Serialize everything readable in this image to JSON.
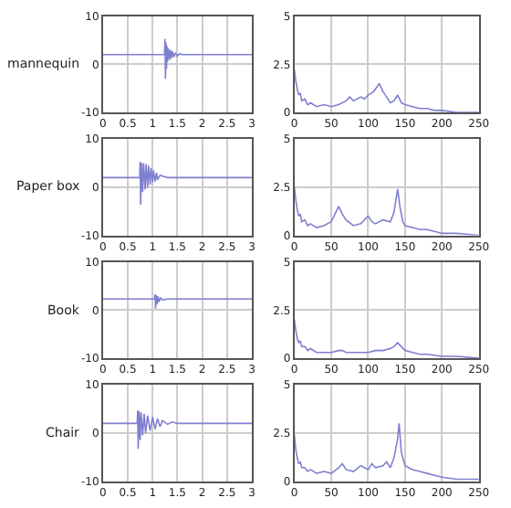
{
  "chart_data": [
    {
      "type": "line",
      "ylabel": "mannequin",
      "xlim": [
        0,
        3
      ],
      "xticks": [
        0,
        0.5,
        1,
        1.5,
        2,
        2.5,
        3
      ],
      "ylim": [
        -10,
        10
      ],
      "yticks": [
        -10,
        0,
        10
      ],
      "grid": true,
      "series": [
        {
          "color": "#7f7fd0",
          "x": [
            0,
            1.24,
            1.25,
            1.26,
            1.27,
            1.28,
            1.29,
            1.3,
            1.32,
            1.34,
            1.36,
            1.38,
            1.4,
            1.43,
            1.46,
            1.5,
            1.55,
            1.6,
            3
          ],
          "values": [
            2,
            2,
            5.3,
            -3,
            4.5,
            -1,
            3.8,
            0.5,
            3.3,
            0.9,
            3,
            1.2,
            2.7,
            1.5,
            2.4,
            1.7,
            2.2,
            2,
            2
          ]
        }
      ]
    },
    {
      "type": "line",
      "xlim": [
        0,
        250
      ],
      "xticks": [
        0,
        50,
        100,
        150,
        200,
        250
      ],
      "ylim": [
        0,
        5
      ],
      "yticks": [
        0,
        2.5,
        5
      ],
      "grid": true,
      "series": [
        {
          "color": "#7f7fd0",
          "x": [
            0,
            2,
            4,
            6,
            8,
            10,
            14,
            18,
            22,
            30,
            40,
            50,
            60,
            70,
            75,
            80,
            90,
            95,
            100,
            108,
            115,
            120,
            125,
            130,
            135,
            140,
            145,
            150,
            160,
            170,
            180,
            190,
            200,
            220,
            250
          ],
          "values": [
            2.2,
            1.6,
            1.2,
            0.9,
            1,
            0.6,
            0.7,
            0.4,
            0.5,
            0.3,
            0.4,
            0.3,
            0.4,
            0.6,
            0.8,
            0.6,
            0.8,
            0.7,
            0.9,
            1.1,
            1.5,
            1.1,
            0.8,
            0.5,
            0.6,
            0.9,
            0.5,
            0.4,
            0.3,
            0.2,
            0.2,
            0.1,
            0.1,
            0,
            0
          ]
        }
      ]
    },
    {
      "type": "line",
      "ylabel": "Paper box",
      "xlim": [
        0,
        3
      ],
      "xticks": [
        0,
        0.5,
        1,
        1.5,
        2,
        2.5,
        3
      ],
      "ylim": [
        -10,
        10
      ],
      "yticks": [
        -10,
        0,
        10
      ],
      "grid": true,
      "series": [
        {
          "color": "#7f7fd0",
          "x": [
            0,
            0.74,
            0.75,
            0.76,
            0.78,
            0.8,
            0.82,
            0.85,
            0.87,
            0.9,
            0.92,
            0.95,
            0.97,
            1.0,
            1.02,
            1.05,
            1.08,
            1.1,
            1.15,
            1.2,
            1.3,
            3
          ],
          "values": [
            2,
            2,
            5.3,
            -3.7,
            5,
            -1,
            5,
            -0.5,
            4.8,
            0,
            4.5,
            0.5,
            4,
            1,
            3.5,
            1.2,
            3,
            1.5,
            2.5,
            2.3,
            2,
            2
          ]
        }
      ]
    },
    {
      "type": "line",
      "xlim": [
        0,
        250
      ],
      "xticks": [
        0,
        50,
        100,
        150,
        200,
        250
      ],
      "ylim": [
        0,
        5
      ],
      "yticks": [
        0,
        2.5,
        5
      ],
      "grid": true,
      "series": [
        {
          "color": "#7f7fd0",
          "x": [
            0,
            2,
            4,
            6,
            8,
            10,
            14,
            18,
            22,
            30,
            40,
            50,
            55,
            60,
            65,
            70,
            80,
            90,
            100,
            105,
            110,
            120,
            130,
            135,
            140,
            143,
            147,
            150,
            160,
            170,
            180,
            190,
            200,
            220,
            250
          ],
          "values": [
            2.5,
            1.8,
            1.3,
            1,
            1.1,
            0.7,
            0.8,
            0.5,
            0.6,
            0.4,
            0.5,
            0.7,
            1.1,
            1.5,
            1.1,
            0.8,
            0.5,
            0.6,
            1,
            0.7,
            0.6,
            0.8,
            0.7,
            1.2,
            2.4,
            1.5,
            0.7,
            0.5,
            0.4,
            0.3,
            0.3,
            0.2,
            0.1,
            0.1,
            0
          ]
        }
      ]
    },
    {
      "type": "line",
      "ylabel": "Book",
      "xlim": [
        0,
        3
      ],
      "xticks": [
        0,
        0.5,
        1,
        1.5,
        2,
        2.5,
        3
      ],
      "ylim": [
        -10,
        10
      ],
      "yticks": [
        -10,
        0,
        10
      ],
      "grid": true,
      "series": [
        {
          "color": "#7f7fd0",
          "x": [
            0,
            1.04,
            1.05,
            1.06,
            1.07,
            1.09,
            1.11,
            1.13,
            1.16,
            1.2,
            1.3,
            3
          ],
          "values": [
            2.3,
            2.3,
            3.3,
            0.3,
            3.1,
            1.2,
            2.9,
            1.7,
            2.6,
            2.1,
            2.3,
            2.3
          ]
        }
      ]
    },
    {
      "type": "line",
      "xlim": [
        0,
        250
      ],
      "xticks": [
        0,
        50,
        100,
        150,
        200,
        250
      ],
      "ylim": [
        0,
        5
      ],
      "yticks": [
        0,
        2.5,
        5
      ],
      "grid": true,
      "series": [
        {
          "color": "#7f7fd0",
          "x": [
            0,
            2,
            4,
            6,
            8,
            10,
            14,
            18,
            22,
            30,
            40,
            50,
            60,
            65,
            70,
            80,
            90,
            100,
            110,
            120,
            130,
            135,
            140,
            145,
            150,
            160,
            170,
            180,
            200,
            220,
            250
          ],
          "values": [
            2,
            1.4,
            1,
            0.8,
            0.9,
            0.6,
            0.6,
            0.4,
            0.5,
            0.3,
            0.3,
            0.3,
            0.4,
            0.4,
            0.3,
            0.3,
            0.3,
            0.3,
            0.4,
            0.4,
            0.5,
            0.6,
            0.8,
            0.6,
            0.4,
            0.3,
            0.2,
            0.2,
            0.1,
            0.1,
            0
          ]
        }
      ]
    },
    {
      "type": "line",
      "ylabel": "Chair",
      "xlim": [
        0,
        3
      ],
      "xticks": [
        0,
        0.5,
        1,
        1.5,
        2,
        2.5,
        3
      ],
      "ylim": [
        -10,
        10
      ],
      "yticks": [
        -10,
        0,
        10
      ],
      "grid": true,
      "series": [
        {
          "color": "#7f7fd0",
          "x": [
            0,
            0.69,
            0.7,
            0.71,
            0.73,
            0.75,
            0.77,
            0.8,
            0.83,
            0.86,
            0.9,
            0.95,
            1.0,
            1.05,
            1.1,
            1.15,
            1.2,
            1.3,
            1.4,
            1.5,
            3
          ],
          "values": [
            2,
            2,
            4.7,
            -3.3,
            4.5,
            -1.5,
            4.3,
            -0.5,
            4,
            0,
            3.6,
            0.5,
            3.3,
            0.8,
            3,
            1.3,
            2.6,
            1.8,
            2.3,
            2,
            2
          ]
        }
      ]
    },
    {
      "type": "line",
      "xlim": [
        0,
        250
      ],
      "xticks": [
        0,
        50,
        100,
        150,
        200,
        250
      ],
      "ylim": [
        0,
        5
      ],
      "yticks": [
        0,
        2.5,
        5
      ],
      "grid": true,
      "series": [
        {
          "color": "#7f7fd0",
          "x": [
            0,
            2,
            4,
            6,
            8,
            10,
            14,
            18,
            22,
            30,
            40,
            50,
            60,
            65,
            70,
            80,
            90,
            100,
            105,
            110,
            120,
            125,
            130,
            135,
            140,
            142,
            145,
            150,
            160,
            170,
            180,
            190,
            200,
            220,
            250
          ],
          "values": [
            2.4,
            1.6,
            1.2,
            0.9,
            1,
            0.7,
            0.7,
            0.5,
            0.6,
            0.4,
            0.5,
            0.4,
            0.7,
            0.9,
            0.6,
            0.5,
            0.8,
            0.6,
            0.9,
            0.7,
            0.8,
            1,
            0.7,
            1.2,
            2.2,
            3,
            1.5,
            0.8,
            0.6,
            0.5,
            0.4,
            0.3,
            0.2,
            0.1,
            0.1
          ]
        }
      ]
    }
  ]
}
